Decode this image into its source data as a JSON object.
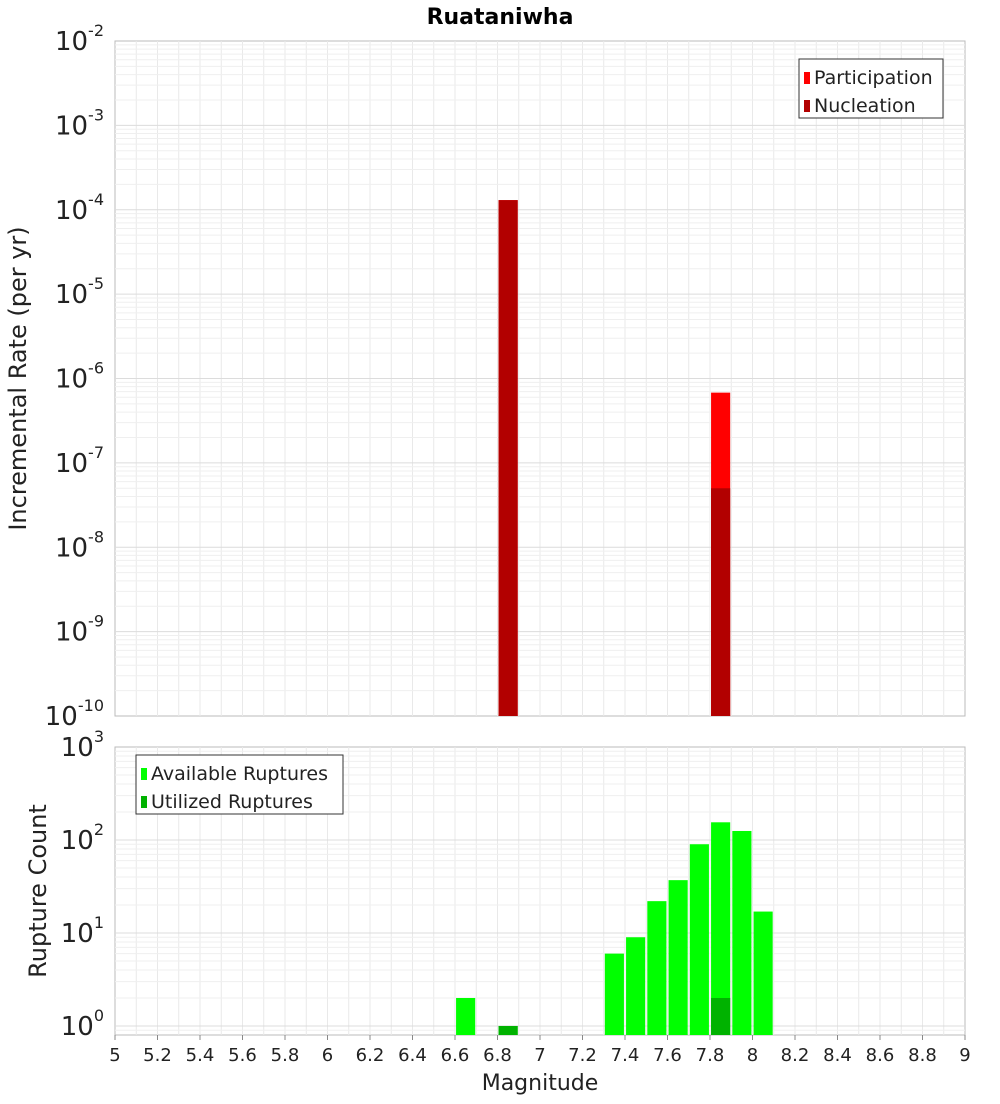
{
  "chart_data": [
    {
      "type": "bar",
      "title": "Ruataniwha",
      "ylabel": "Incremental Rate (per yr)",
      "yscale": "log",
      "ylim": [
        1e-10,
        0.01
      ],
      "xlim": [
        5,
        9
      ],
      "bar_width": 0.09,
      "y_ticks": [
        {
          "base": "10",
          "exp": "-10"
        },
        {
          "base": "10",
          "exp": "-9"
        },
        {
          "base": "10",
          "exp": "-8"
        },
        {
          "base": "10",
          "exp": "-7"
        },
        {
          "base": "10",
          "exp": "-6"
        },
        {
          "base": "10",
          "exp": "-5"
        },
        {
          "base": "10",
          "exp": "-4"
        },
        {
          "base": "10",
          "exp": "-3"
        },
        {
          "base": "10",
          "exp": "-2"
        }
      ],
      "legend_position": "top-right",
      "series": [
        {
          "name": "Participation",
          "color": "#ff0000",
          "x": [
            6.85,
            7.85
          ],
          "values": [
            0.00013,
            6.8e-07
          ]
        },
        {
          "name": "Nucleation",
          "color": "#b20000",
          "x": [
            6.85,
            7.85
          ],
          "values": [
            0.00013,
            5e-08
          ]
        }
      ],
      "grid": true
    },
    {
      "type": "bar",
      "xlabel": "Magnitude",
      "ylabel": "Rupture Count",
      "yscale": "log",
      "ylim": [
        0.8,
        1000
      ],
      "xlim": [
        5,
        9
      ],
      "bar_width": 0.09,
      "x_ticks": [
        "5",
        "5.2",
        "5.4",
        "5.6",
        "5.8",
        "6",
        "6.2",
        "6.4",
        "6.6",
        "6.8",
        "7",
        "7.2",
        "7.4",
        "7.6",
        "7.8",
        "8",
        "8.2",
        "8.4",
        "8.6",
        "8.8",
        "9"
      ],
      "y_ticks": [
        {
          "base": "10",
          "exp": "0"
        },
        {
          "base": "10",
          "exp": "1"
        },
        {
          "base": "10",
          "exp": "2"
        },
        {
          "base": "10",
          "exp": "3"
        }
      ],
      "legend_position": "top-left",
      "series": [
        {
          "name": "Available Ruptures",
          "color": "#00ff00",
          "x": [
            6.65,
            6.85,
            7.35,
            7.45,
            7.55,
            7.65,
            7.75,
            7.85,
            7.95,
            8.05
          ],
          "values": [
            2,
            1,
            6,
            9,
            22,
            37,
            90,
            155,
            125,
            17
          ]
        },
        {
          "name": "Utilized Ruptures",
          "color": "#00b200",
          "x": [
            6.85,
            7.85
          ],
          "values": [
            1,
            2
          ]
        }
      ],
      "grid": true
    }
  ]
}
